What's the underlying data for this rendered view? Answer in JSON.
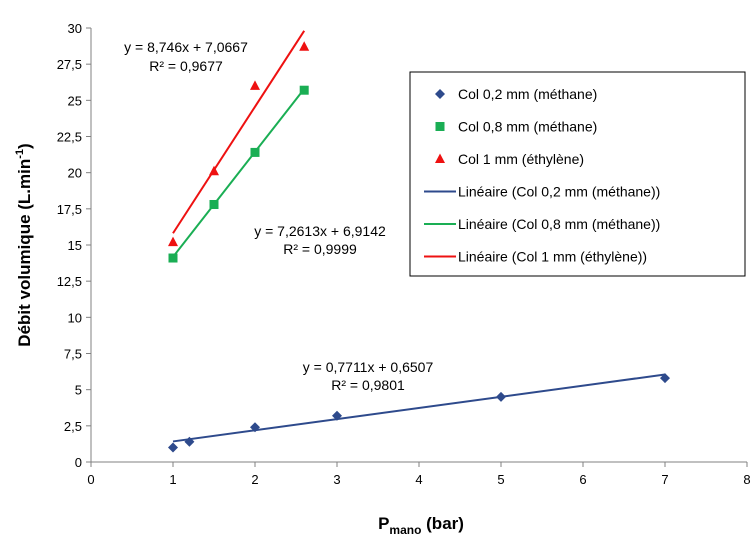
{
  "chart_data": {
    "type": "scatter",
    "xlabel": {
      "main": "P",
      "sub": "mano",
      "tail": " (bar)"
    },
    "ylabel": {
      "main": "Débit volumique (L.min",
      "sup": "-1",
      "tail": ")"
    },
    "xlim": [
      0,
      8
    ],
    "ylim": [
      0,
      30
    ],
    "x_ticks": [
      "0",
      "1",
      "2",
      "3",
      "4",
      "5",
      "6",
      "7",
      "8"
    ],
    "y_ticks": [
      "0",
      "2,5",
      "5",
      "7,5",
      "10",
      "12,5",
      "15",
      "17,5",
      "20",
      "22,5",
      "25",
      "27,5",
      "30"
    ],
    "grid": false,
    "legend_position": "right",
    "series": [
      {
        "name": "Col 0,2 mm (méthane)",
        "marker": "diamond",
        "color": "#2E4A8C",
        "points": [
          [
            1,
            1.0
          ],
          [
            1.2,
            1.4
          ],
          [
            2,
            2.4
          ],
          [
            3,
            3.2
          ],
          [
            5,
            4.5
          ],
          [
            7,
            5.8
          ]
        ]
      },
      {
        "name": "Col 0,8 mm (méthane)",
        "marker": "square",
        "color": "#1AAE54",
        "points": [
          [
            1,
            14.1
          ],
          [
            1.5,
            17.8
          ],
          [
            2,
            21.4
          ],
          [
            2.6,
            25.7
          ]
        ]
      },
      {
        "name": "Col 1 mm (éthylène)",
        "marker": "triangle",
        "color": "#EE1111",
        "points": [
          [
            1,
            15.2
          ],
          [
            1.5,
            20.1
          ],
          [
            2,
            26.0
          ],
          [
            2.6,
            28.7
          ]
        ]
      }
    ],
    "trendlines": [
      {
        "name": "Linéaire (Col 0,2 mm (méthane))",
        "color": "#2E4A8C",
        "slope": 0.7711,
        "intercept": 0.6507,
        "x_range": [
          1,
          7
        ],
        "equation": "y = 0,7711x + 0,6507",
        "r2": "R² = 0,9801"
      },
      {
        "name": "Linéaire (Col 0,8 mm (méthane))",
        "color": "#1AAE54",
        "slope": 7.2613,
        "intercept": 6.9142,
        "x_range": [
          1,
          2.6
        ],
        "equation": "y = 7,2613x + 6,9142",
        "r2": "R² = 0,9999"
      },
      {
        "name": "Linéaire (Col 1 mm (éthylène))",
        "color": "#EE1111",
        "slope": 8.746,
        "intercept": 7.0667,
        "x_range": [
          1,
          2.6
        ],
        "equation": "y = 8,746x + 7,0667",
        "r2": "R² = 0,9677"
      }
    ]
  }
}
